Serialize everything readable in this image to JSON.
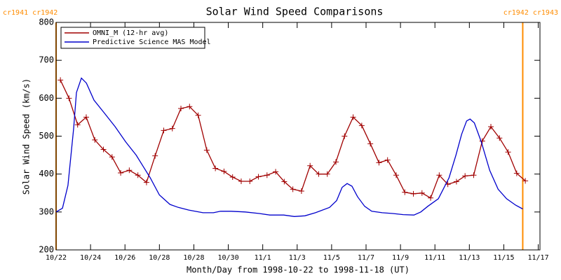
{
  "chart_data": {
    "type": "line",
    "title": "Solar Wind Speed Comparisons",
    "xlabel": "Month/Day from 1998-10-22 to 1998-11-18 (UT)",
    "ylabel": "Solar Wind Speed (km/s)",
    "xlim": [
      0,
      28.1
    ],
    "ylim": [
      200,
      800
    ],
    "xticks": [
      {
        "value": 0,
        "label": "10/22"
      },
      {
        "value": 2,
        "label": "10/24"
      },
      {
        "value": 4,
        "label": "10/26"
      },
      {
        "value": 6,
        "label": "10/28"
      },
      {
        "value": 8,
        "label": "10/28"
      },
      {
        "value": 10,
        "label": "10/30"
      },
      {
        "value": 12,
        "label": "11/1"
      },
      {
        "value": 14,
        "label": "11/3"
      },
      {
        "value": 16,
        "label": "11/5"
      },
      {
        "value": 18,
        "label": "11/7"
      },
      {
        "value": 20,
        "label": "11/9"
      },
      {
        "value": 22,
        "label": "11/11"
      },
      {
        "value": 24,
        "label": "11/13"
      },
      {
        "value": 26,
        "label": "11/15"
      },
      {
        "value": 28,
        "label": "11/17"
      }
    ],
    "yticks": [
      200,
      300,
      400,
      500,
      600,
      700,
      800
    ],
    "legend": "upper left",
    "boundaries": [
      {
        "value": 0,
        "label": "cr1941 cr1942",
        "color": "#ff8c00"
      },
      {
        "value": 27.1,
        "label": "cr1942 cr1943",
        "color": "#ff8c00"
      }
    ],
    "series": [
      {
        "name": "OMNI_M (12-hr avg)",
        "color": "#a00000",
        "markers": true,
        "x": [
          0.25,
          0.75,
          1.25,
          1.75,
          2.25,
          2.75,
          3.25,
          3.75,
          4.25,
          4.75,
          5.25,
          5.75,
          6.25,
          6.75,
          7.25,
          7.75,
          8.25,
          8.75,
          9.25,
          9.75,
          10.25,
          10.75,
          11.25,
          11.75,
          12.25,
          12.75,
          13.25,
          13.75,
          14.25,
          14.75,
          15.25,
          15.75,
          16.25,
          16.75,
          17.25,
          17.75,
          18.25,
          18.75,
          19.25,
          19.75,
          20.25,
          20.75,
          21.25,
          21.75,
          22.25,
          22.75,
          23.25,
          23.75,
          24.25,
          24.75,
          25.25,
          25.75,
          26.25,
          26.75,
          27.25
        ],
        "values": [
          648,
          600,
          530,
          550,
          490,
          465,
          445,
          403,
          410,
          397,
          378,
          448,
          515,
          520,
          573,
          578,
          555,
          463,
          415,
          407,
          392,
          381,
          381,
          393,
          397,
          406,
          380,
          360,
          355,
          422,
          400,
          400,
          432,
          500,
          550,
          528,
          480,
          430,
          437,
          397,
          352,
          348,
          350,
          337,
          397,
          373,
          380,
          395,
          397,
          487,
          525,
          495,
          458,
          402,
          382
        ]
      },
      {
        "name": "Predictive Science MAS Model",
        "color": "#0000cc",
        "markers": false,
        "x": [
          0,
          0.37,
          0.69,
          1.02,
          1.18,
          1.47,
          1.76,
          2.2,
          2.82,
          3.43,
          4.04,
          4.65,
          5.06,
          5.47,
          6.0,
          6.61,
          7.1,
          7.71,
          8.53,
          9.14,
          9.55,
          10.16,
          10.98,
          11.8,
          12.41,
          13.22,
          13.84,
          14.45,
          15.06,
          15.88,
          16.29,
          16.61,
          16.9,
          17.18,
          17.51,
          17.92,
          18.33,
          18.94,
          19.55,
          20.16,
          20.78,
          21.18,
          21.59,
          22.2,
          22.82,
          23.22,
          23.55,
          23.84,
          24.04,
          24.29,
          24.69,
          25.18,
          25.67,
          26.16,
          26.69,
          27.1
        ],
        "values": [
          300,
          310,
          370,
          520,
          615,
          653,
          640,
          595,
          560,
          525,
          485,
          450,
          420,
          390,
          345,
          320,
          312,
          305,
          298,
          298,
          302,
          302,
          300,
          296,
          292,
          292,
          288,
          290,
          298,
          312,
          330,
          365,
          375,
          368,
          340,
          315,
          302,
          298,
          296,
          293,
          292,
          300,
          315,
          335,
          390,
          450,
          505,
          540,
          545,
          535,
          485,
          410,
          360,
          335,
          318,
          308
        ]
      }
    ]
  }
}
